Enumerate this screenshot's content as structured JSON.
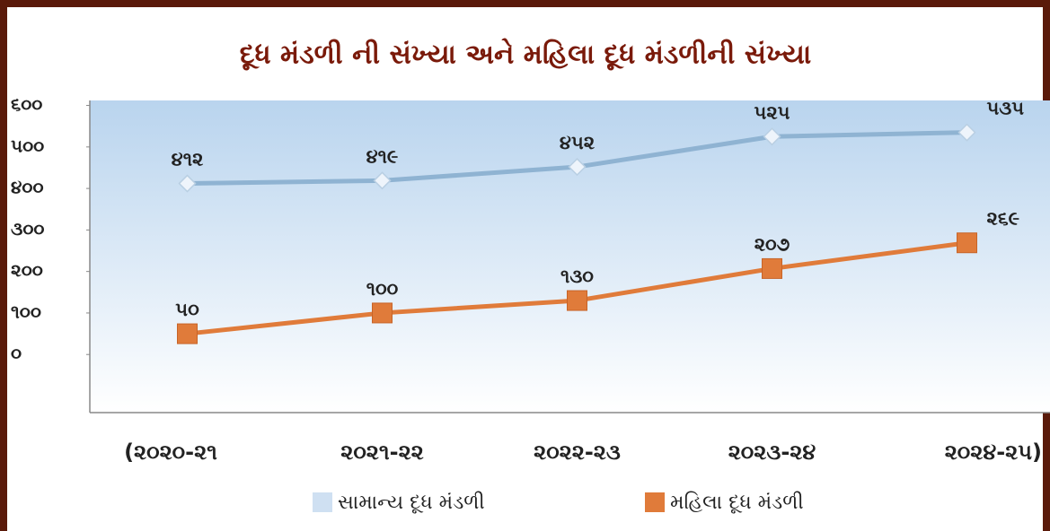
{
  "chart_data": {
    "type": "line",
    "title": "દૂધ મંડળી ની સંખ્યા અને મહિલા દૂધ મંડળીની સંખ્યા",
    "categories": [
      "(૨૦૨૦-૨૧",
      "૨૦૨૧-૨૨",
      "૨૦૨૨-૨૩",
      "૨૦૨૩-૨૪",
      "૨૦૨૪-૨૫)"
    ],
    "series": [
      {
        "name": "સામાન્ય દૂધ મંડળી",
        "color": "#8fb3d2",
        "marker": "diamond",
        "values": [
          412,
          419,
          452,
          525,
          535
        ],
        "value_labels": [
          "૪૧૨",
          "૪૧૯",
          "૪૫૨",
          "૫૨૫",
          "૫૩૫"
        ]
      },
      {
        "name": "મહિલા દૂધ મંડળી",
        "color": "#e07b3a",
        "marker": "square",
        "values": [
          50,
          100,
          130,
          207,
          269
        ],
        "value_labels": [
          "૫૦",
          "૧૦૦",
          "૧૩૦",
          "૨૦૭",
          "૨૬૯"
        ]
      }
    ],
    "ylim": [
      -140,
      612
    ],
    "yticks": [
      {
        "value": 0,
        "label": "૦"
      },
      {
        "value": 100,
        "label": "૧૦૦"
      },
      {
        "value": 200,
        "label": "૨૦૦"
      },
      {
        "value": 300,
        "label": "૩૦૦"
      },
      {
        "value": 400,
        "label": "૪૦૦"
      },
      {
        "value": 500,
        "label": "૫૦૦"
      },
      {
        "value": 600,
        "label": "૬૦૦"
      }
    ],
    "grid": false,
    "legend": "bottom"
  }
}
